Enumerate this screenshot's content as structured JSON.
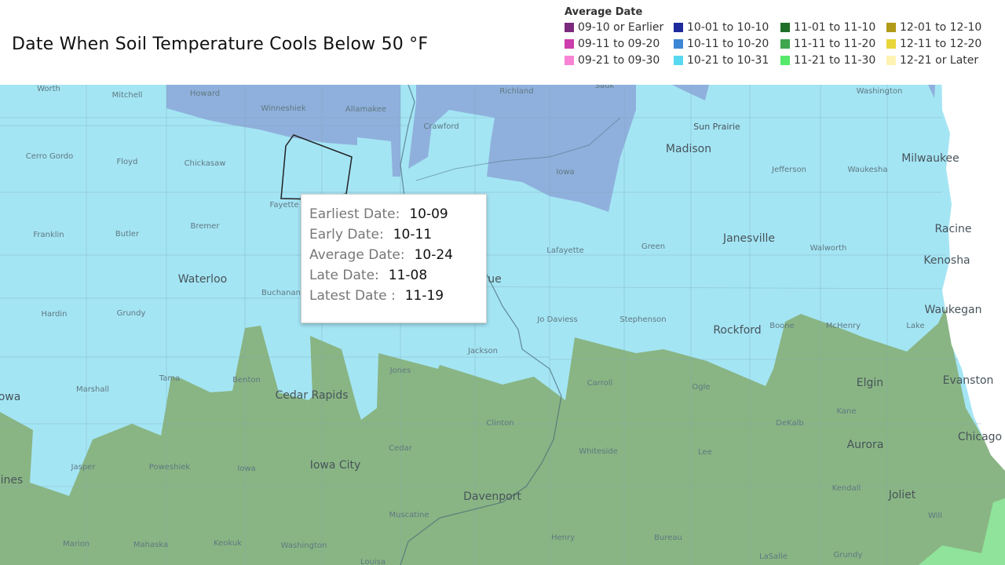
{
  "title": "Date When Soil Temperature Cools Below 50 °F",
  "legend": {
    "title": "Average Date",
    "items": [
      {
        "label": "09-10 or Earlier",
        "color": "#7b2a7d"
      },
      {
        "label": "10-01 to 10-10",
        "color": "#1f2a9c"
      },
      {
        "label": "11-01 to 11-10",
        "color": "#1f6e27"
      },
      {
        "label": "12-01 to 12-10",
        "color": "#b09a17"
      },
      {
        "label": "09-11 to 09-20",
        "color": "#cc3dae"
      },
      {
        "label": "10-11 to 10-20",
        "color": "#3d86d6"
      },
      {
        "label": "11-11 to 11-20",
        "color": "#3fa64d"
      },
      {
        "label": "12-11 to 12-20",
        "color": "#e8d53a"
      },
      {
        "label": "09-21 to 09-30",
        "color": "#f784d4"
      },
      {
        "label": "10-21 to 10-31",
        "color": "#58d9f2"
      },
      {
        "label": "11-21 to 11-30",
        "color": "#56e86a"
      },
      {
        "label": "12-21 or Later",
        "color": "#fff3b3"
      }
    ]
  },
  "tooltip": {
    "rows": [
      {
        "label": "Earliest Date:",
        "value": "10-09"
      },
      {
        "label": "Early Date:",
        "value": "10-11"
      },
      {
        "label": "Average Date:",
        "value": "10-24"
      },
      {
        "label": "Late Date:",
        "value": "11-08"
      },
      {
        "label": "Latest Date :",
        "value": "11-19"
      }
    ]
  },
  "map": {
    "colors": {
      "region_10_11_to_10_20": "#8fb0dc",
      "region_10_21_to_10_31": "#a4e5f4",
      "region_11_01_to_11_10": "#89b584",
      "region_11_21_to_11_30": "#8fe39a",
      "lake": "#ffffff",
      "selected_outline": "#222222"
    },
    "cities": [
      "Madison",
      "Milwaukee",
      "Sun Prairie",
      "Janesville",
      "Racine",
      "Kenosha",
      "Waukegan",
      "Rockford",
      "Waterloo",
      "Cedar Rapids",
      "Iowa City",
      "Davenport",
      "Elgin",
      "Evanston",
      "Chicago",
      "Aurora",
      "Joliet",
      "ines",
      "owa",
      "ue"
    ],
    "counties": [
      "Worth",
      "Mitchell",
      "Howard",
      "Winneshiek",
      "Allamakee",
      "Richland",
      "Sauk",
      "Washington",
      "Cerro Gordo",
      "Floyd",
      "Chickasaw",
      "Crawford",
      "Iowa",
      "Jefferson",
      "Waukesha",
      "Fayette",
      "Franklin",
      "Butler",
      "Bremer",
      "Lafayette",
      "Green",
      "Walworth",
      "Buchanan",
      "Hardin",
      "Grundy",
      "Jo Daviess",
      "Stephenson",
      "Boone",
      "McHenry",
      "Lake",
      "Jackson",
      "Marshall",
      "Tama",
      "Benton",
      "Jones",
      "Carroll",
      "Ogle",
      "Clinton",
      "Kane",
      "DeKalb",
      "Cedar",
      "Whiteside",
      "Lee",
      "Jasper",
      "Poweshiek",
      "Iowa",
      "Muscatine",
      "Kendall",
      "Will",
      "Marion",
      "Mahaska",
      "Keokuk",
      "Washington",
      "Louisa",
      "Henry",
      "Bureau",
      "LaSalle",
      "Grundy"
    ]
  }
}
